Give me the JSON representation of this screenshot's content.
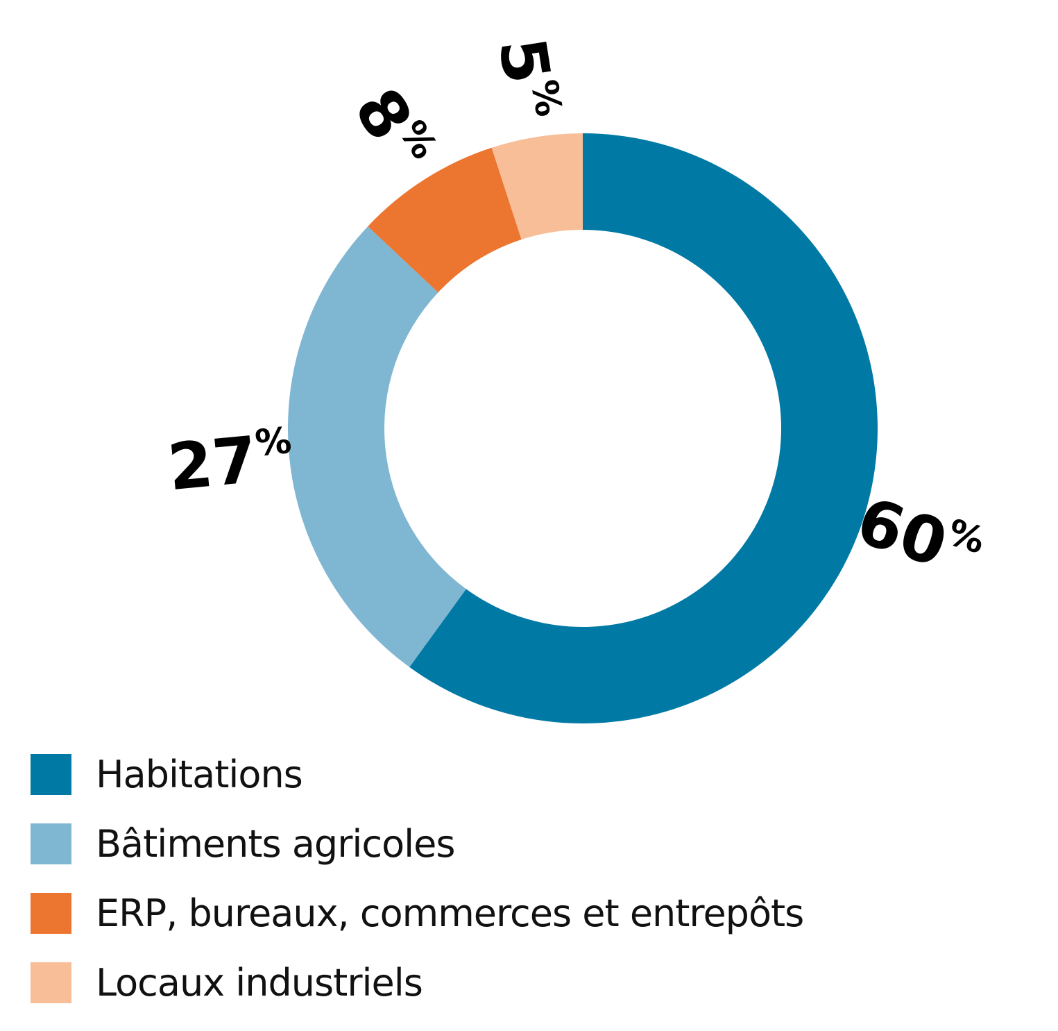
{
  "chart_data": {
    "type": "pie",
    "variant": "donut",
    "title": "",
    "slices": [
      {
        "label": "Habitations",
        "value": 60,
        "display": "60",
        "unit": "%",
        "color": "#0079A5"
      },
      {
        "label": "Bâtiments agricoles",
        "value": 27,
        "display": "27",
        "unit": "%",
        "color": "#7FB6D2"
      },
      {
        "label": "ERP, bureaux, commerces et entrepôts",
        "value": 8,
        "display": "8",
        "unit": "%",
        "color": "#EC7530"
      },
      {
        "label": "Locaux industriels",
        "value": 5,
        "display": "5",
        "unit": "%",
        "color": "#F8BE98"
      }
    ],
    "start_angle": "12 o'clock",
    "direction": "clockwise",
    "legend_position": "bottom-left"
  }
}
